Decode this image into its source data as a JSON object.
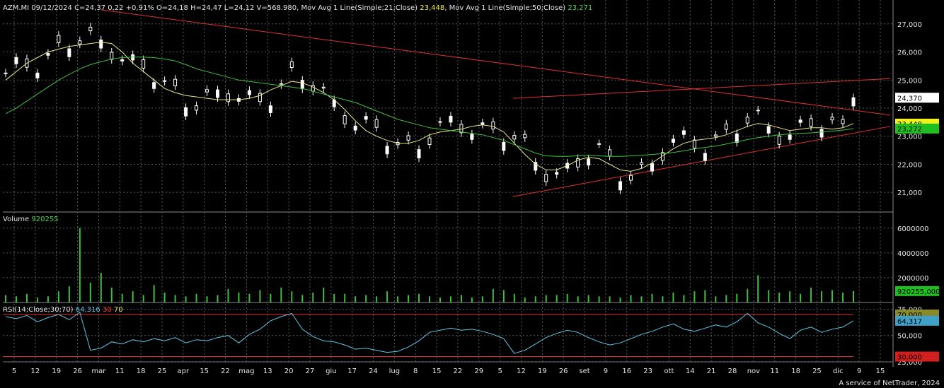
{
  "header": {
    "price_info": "AZM.MI 09/12/2024 C=24,37 0,22 +0,91% O=24,18 H=24,47 L=24,12 V=568.980,",
    "ma21_label": "Mov Avg 1 Line(Simple;21;Close)",
    "ma21_value": "23,448,",
    "ma50_label": "Mov Avg 1 Line(Simple;50;Close)",
    "ma50_value": "23,271",
    "volume_label": "Volume",
    "volume_value": "920255",
    "rsi_label": "RSI(14;Close;30;70)",
    "rsi_value": "64,316",
    "rsi_low": "30",
    "rsi_high": "70"
  },
  "footer": "A service of NetTrader, 2024",
  "colors": {
    "background": "#000000",
    "grid": "#5a5a5a",
    "candle": "#ffffff",
    "ma21": "#e6e68a",
    "ma50": "#3fbf3f",
    "trendline": "#e03030",
    "volume": "#3fbf3f",
    "rsi": "#5ec8e6",
    "rsi_levels": "#e03030",
    "axis_text": "#e6e6e6"
  },
  "chart_data": [
    {
      "type": "candlestick",
      "panel": "price",
      "yticks": [
        "21,000",
        "22,000",
        "23,000",
        "24,000",
        "25,000",
        "26,000",
        "27,000"
      ],
      "ylim": [
        20.3,
        27.8
      ],
      "grid": true,
      "last_price_tag": "24,370",
      "ma21_tag": "23,448",
      "ma50_tag": "23,272",
      "series": [
        {
          "name": "Mov Avg 1 Line(Simple;21;Close)",
          "values": [
            25.0,
            25.3,
            25.6,
            25.8,
            26.0,
            26.1,
            26.2,
            26.25,
            26.3,
            26.35,
            26.3,
            26.0,
            25.6,
            25.3,
            25.0,
            24.7,
            24.55,
            24.45,
            24.4,
            24.35,
            24.3,
            24.3,
            24.3,
            24.35,
            24.45,
            24.65,
            24.8,
            24.95,
            24.9,
            24.75,
            24.55,
            24.3,
            23.95,
            23.55,
            23.2,
            23.0,
            22.85,
            22.75,
            22.75,
            22.85,
            23.05,
            23.15,
            23.2,
            23.25,
            23.35,
            23.4,
            23.35,
            23.15,
            22.75,
            22.35,
            22.0,
            21.8,
            21.8,
            21.95,
            22.15,
            22.25,
            22.2,
            22.0,
            21.8,
            21.75,
            21.85,
            22.05,
            22.3,
            22.55,
            22.75,
            22.85,
            22.9,
            22.95,
            23.05,
            23.2,
            23.35,
            23.45,
            23.4,
            23.3,
            23.2,
            23.25,
            23.3,
            23.3,
            23.25,
            23.3,
            23.45
          ]
        },
        {
          "name": "Mov Avg 1 Line(Simple;50;Close)",
          "values": [
            23.8,
            24.0,
            24.25,
            24.5,
            24.75,
            25.0,
            25.2,
            25.4,
            25.55,
            25.65,
            25.75,
            25.8,
            25.82,
            25.82,
            25.8,
            25.75,
            25.68,
            25.55,
            25.4,
            25.3,
            25.2,
            25.1,
            25.0,
            24.95,
            24.9,
            24.85,
            24.8,
            24.75,
            24.7,
            24.6,
            24.5,
            24.4,
            24.3,
            24.2,
            24.05,
            23.9,
            23.75,
            23.6,
            23.5,
            23.4,
            23.3,
            23.25,
            23.2,
            23.15,
            23.1,
            23.05,
            22.95,
            22.85,
            22.7,
            22.55,
            22.4,
            22.3,
            22.28,
            22.28,
            22.3,
            22.32,
            22.3,
            22.28,
            22.28,
            22.3,
            22.32,
            22.35,
            22.38,
            22.42,
            22.48,
            22.55,
            22.6,
            22.65,
            22.72,
            22.8,
            22.88,
            22.95,
            23.0,
            23.05,
            23.08,
            23.1,
            23.12,
            23.15,
            23.18,
            23.22,
            23.27
          ]
        }
      ]
    },
    {
      "type": "bar",
      "panel": "volume",
      "yticks": [
        "2000000",
        "4000000",
        "6000000"
      ],
      "ylim": [
        0,
        6500000
      ],
      "last_volume_tag": "920255,000",
      "series": [
        {
          "name": "Volume",
          "values": [
            600000,
            500000,
            700000,
            400000,
            500000,
            900000,
            1300000,
            6000000,
            1600000,
            2400000,
            1200000,
            700000,
            900000,
            600000,
            1400000,
            800000,
            600000,
            500000,
            700000,
            500000,
            600000,
            1100000,
            800000,
            700000,
            1000000,
            700000,
            1200000,
            900000,
            600000,
            800000,
            1200000,
            700000,
            700000,
            500000,
            600000,
            500000,
            900000,
            500000,
            600000,
            700000,
            500000,
            400000,
            500000,
            600000,
            400000,
            500000,
            1100000,
            1000000,
            700000,
            400000,
            500000,
            600000,
            600000,
            700000,
            500000,
            600000,
            500000,
            500000,
            400000,
            600000,
            500000,
            700000,
            500000,
            800000,
            600000,
            900000,
            1000000,
            500000,
            600000,
            700000,
            1100000,
            2200000,
            1000000,
            800000,
            900000,
            700000,
            1200000,
            900000,
            1000000,
            800000,
            920255
          ]
        }
      ]
    },
    {
      "type": "line",
      "panel": "rsi",
      "yticks": [
        "25,000",
        "50,000",
        "75,000"
      ],
      "ylim": [
        25,
        80
      ],
      "levels": [
        30,
        70
      ],
      "level_tags": [
        "30,000",
        "70,000"
      ],
      "last_value_tag": "64,317",
      "series": [
        {
          "name": "RSI(14;Close;30;70)",
          "values": [
            68,
            66,
            69,
            63,
            67,
            70,
            65,
            72,
            36,
            38,
            44,
            42,
            46,
            44,
            47,
            45,
            48,
            43,
            46,
            45,
            48,
            50,
            43,
            51,
            56,
            64,
            68,
            71,
            56,
            49,
            45,
            44,
            41,
            37,
            38,
            36,
            34,
            35,
            39,
            45,
            53,
            55,
            57,
            55,
            56,
            54,
            51,
            47,
            33,
            36,
            42,
            48,
            52,
            55,
            53,
            48,
            44,
            41,
            43,
            47,
            51,
            54,
            58,
            61,
            56,
            54,
            57,
            60,
            58,
            63,
            71,
            62,
            58,
            52,
            47,
            55,
            58,
            53,
            56,
            58,
            64
          ]
        }
      ],
      "xticks": [
        "5",
        "12",
        "19",
        "26",
        "mar",
        "11",
        "18",
        "25",
        "apr",
        "15",
        "22",
        "mag",
        "13",
        "20",
        "27",
        "giu",
        "17",
        "24",
        "lug",
        "8",
        "15",
        "22",
        "29",
        "5",
        "12",
        "19",
        "26",
        "set",
        "9",
        "16",
        "23",
        "ott",
        "14",
        "21",
        "28",
        "nov",
        "11",
        "18",
        "25",
        "dic",
        "9",
        "15"
      ]
    }
  ]
}
